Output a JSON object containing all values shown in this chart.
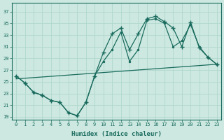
{
  "xlabel": "Humidex (Indice chaleur)",
  "bg_color": "#cce8e0",
  "line_color": "#1a6b5e",
  "grid_color": "#b0d8ce",
  "xlim": [
    -0.5,
    23.5
  ],
  "ylim": [
    18.5,
    38.5
  ],
  "xticks": [
    0,
    1,
    2,
    3,
    4,
    5,
    6,
    7,
    8,
    9,
    10,
    11,
    12,
    13,
    14,
    15,
    16,
    17,
    18,
    19,
    20,
    21,
    22,
    23
  ],
  "yticks": [
    19,
    21,
    23,
    25,
    27,
    29,
    31,
    33,
    35,
    37
  ],
  "line1_x": [
    0,
    1,
    2,
    3,
    4,
    5,
    6,
    7,
    8,
    9,
    10,
    11,
    12,
    13,
    14,
    15,
    16,
    17,
    18,
    19,
    20,
    21,
    22,
    23
  ],
  "line1_y": [
    26.0,
    24.8,
    23.2,
    22.7,
    21.8,
    21.5,
    19.7,
    19.2,
    21.5,
    26.0,
    30.0,
    33.2,
    34.2,
    30.5,
    33.2,
    35.8,
    36.2,
    35.3,
    34.2,
    31.0,
    35.2,
    30.8,
    29.2,
    28.0
  ],
  "line2_x": [
    0,
    1,
    2,
    3,
    4,
    5,
    6,
    7,
    8,
    9,
    10,
    11,
    12,
    13,
    14,
    15,
    16,
    17,
    18,
    19,
    20,
    21,
    22,
    23
  ],
  "line2_y": [
    26.0,
    24.8,
    23.2,
    22.7,
    21.8,
    21.5,
    19.7,
    19.2,
    21.5,
    26.0,
    28.5,
    30.5,
    33.5,
    28.5,
    30.5,
    35.5,
    35.8,
    35.0,
    31.0,
    32.0,
    34.8,
    31.0,
    29.2,
    28.0
  ],
  "line3_x": [
    0,
    23
  ],
  "line3_y": [
    25.5,
    28.0
  ]
}
